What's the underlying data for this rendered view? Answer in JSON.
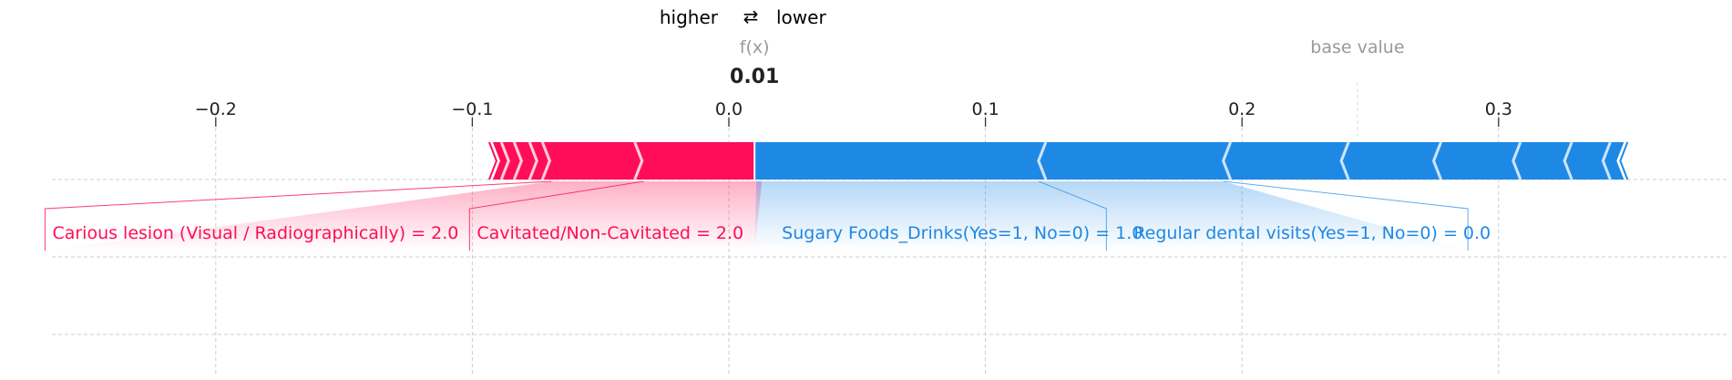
{
  "chart_data": {
    "type": "force",
    "legend": {
      "higher_label": "higher",
      "arrow_symbol": "⇄",
      "lower_label": "lower",
      "higher_color": "#ff0d57",
      "lower_color": "#1e88e5"
    },
    "fx_label": "f(x)",
    "fx_value": 0.01,
    "fx_value_text": "0.01",
    "base_value_label": "base value",
    "base_value": 0.245,
    "xlim": [
      -0.26,
      0.395
    ],
    "ticks": [
      {
        "value": -0.2,
        "label": "−0.2"
      },
      {
        "value": -0.1,
        "label": "−0.1"
      },
      {
        "value": 0.0,
        "label": "0.0"
      },
      {
        "value": 0.1,
        "label": "0.1"
      },
      {
        "value": 0.2,
        "label": "0.2"
      },
      {
        "value": 0.3,
        "label": "0.3"
      }
    ],
    "positive_segments": [
      {
        "from": -0.092,
        "to": -0.088
      },
      {
        "from": -0.088,
        "to": -0.083
      },
      {
        "from": -0.083,
        "to": -0.077
      },
      {
        "from": -0.077,
        "to": -0.072
      },
      {
        "from": -0.072,
        "to": -0.036
      },
      {
        "from": -0.036,
        "to": 0.01
      }
    ],
    "negative_segments": [
      {
        "from": 0.01,
        "to": 0.12
      },
      {
        "from": 0.12,
        "to": 0.192
      },
      {
        "from": 0.192,
        "to": 0.238
      },
      {
        "from": 0.238,
        "to": 0.274
      },
      {
        "from": 0.274,
        "to": 0.305
      },
      {
        "from": 0.305,
        "to": 0.325
      },
      {
        "from": 0.325,
        "to": 0.34
      },
      {
        "from": 0.34,
        "to": 0.346
      }
    ],
    "labels": [
      {
        "text": "Carious lesion (Visual / Radiographically) = 2.0",
        "side": "positive",
        "segment": {
          "from": -0.072,
          "to": -0.036
        }
      },
      {
        "text": "Cavitated/Non-Cavitated = 2.0",
        "side": "positive",
        "segment": {
          "from": -0.036,
          "to": 0.01
        }
      },
      {
        "text": "Sugary Foods_Drinks(Yes=1, No=0) = 1.0",
        "side": "negative",
        "segment": {
          "from": 0.01,
          "to": 0.12
        }
      },
      {
        "text": "Regular dental visits(Yes=1, No=0) = 0.0",
        "side": "negative",
        "segment": {
          "from": 0.12,
          "to": 0.192
        }
      }
    ]
  }
}
